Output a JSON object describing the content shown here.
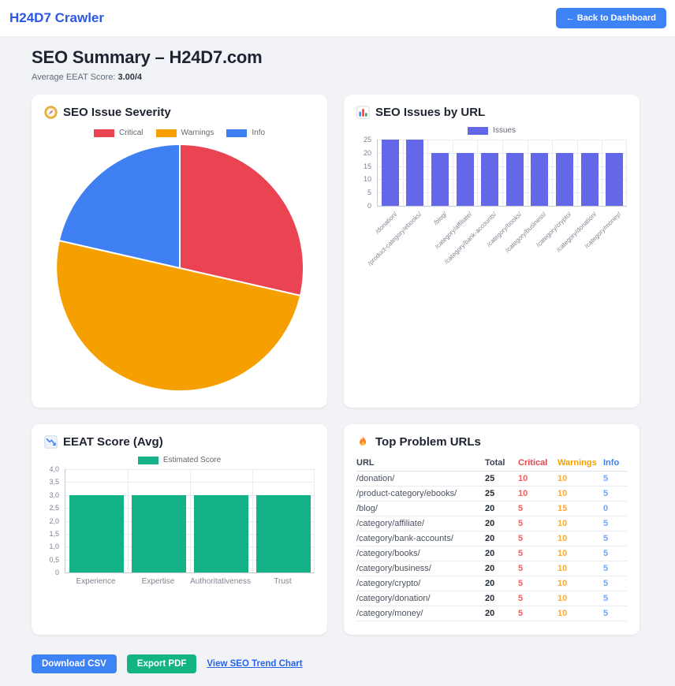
{
  "navbar": {
    "brand": "H24D7 Crawler",
    "back_button": "← Back to Dashboard"
  },
  "page": {
    "title": "SEO Summary – H24D7.com",
    "subtitle_label": "Average EEAT Score:",
    "subtitle_value": "3.00/4"
  },
  "colors": {
    "brand_blue": "#2b57e5",
    "primary_blue": "#3e83f6",
    "green": "#12b483",
    "critical_red": "#ea4352",
    "warning_orange": "#f5a000",
    "info_blue": "#3e7ff2",
    "issues_purple": "#6467e8",
    "eeat_green": "#12b186",
    "link_blue": "#2563eb"
  },
  "cards": {
    "severity": {
      "icon": "compass-icon",
      "title": "SEO Issue Severity"
    },
    "issues_by_url": {
      "icon": "bar-chart-icon",
      "title": "SEO Issues by URL"
    },
    "eeat": {
      "icon": "chart-decreasing-icon",
      "title": "EEAT Score (Avg)"
    },
    "top_urls": {
      "icon": "fire-icon",
      "title": "Top Problem URLs"
    }
  },
  "chart_data": [
    {
      "id": "severity_pie",
      "type": "pie",
      "title": "SEO Issue Severity",
      "labels": [
        "Critical",
        "Warnings",
        "Info"
      ],
      "values": [
        60,
        105,
        45
      ],
      "colors": [
        "#ea4352",
        "#f5a000",
        "#3e7ff2"
      ],
      "legend_position": "top"
    },
    {
      "id": "issues_bar",
      "type": "bar",
      "title": "SEO Issues by URL",
      "legend": "Issues",
      "color": "#6467e8",
      "categories": [
        "/donation/",
        "/product-category/ebooks/",
        "/blog/",
        "/category/affiliate/",
        "/category/bank-accounts/",
        "/category/books/",
        "/category/business/",
        "/category/crypto/",
        "/category/donation/",
        "/category/money/"
      ],
      "values": [
        25,
        25,
        20,
        20,
        20,
        20,
        20,
        20,
        20,
        20
      ],
      "ylim": [
        0,
        25
      ],
      "yticks": [
        "25",
        "20",
        "15",
        "10",
        "5",
        "0"
      ],
      "grid": true,
      "legend_position": "top",
      "xtick_rotation": 45
    },
    {
      "id": "eeat_bar",
      "type": "bar",
      "title": "EEAT Score (Avg)",
      "legend": "Estimated Score",
      "color": "#12b186",
      "categories": [
        "Experience",
        "Expertise",
        "Authoritativeness",
        "Trust"
      ],
      "values": [
        3,
        3,
        3,
        3
      ],
      "ylim": [
        0,
        4
      ],
      "yticks": [
        "4,0",
        "3,5",
        "3,0",
        "2,5",
        "2,0",
        "1,5",
        "1,0",
        "0,5",
        "0"
      ],
      "grid": true,
      "legend_position": "top",
      "xtick_rotation": 0
    }
  ],
  "table": {
    "headers": [
      "URL",
      "Total",
      "Critical",
      "Warnings",
      "Info"
    ],
    "rows": [
      [
        "/donation/",
        "25",
        "10",
        "10",
        "5"
      ],
      [
        "/product-category/ebooks/",
        "25",
        "10",
        "10",
        "5"
      ],
      [
        "/blog/",
        "20",
        "5",
        "15",
        "0"
      ],
      [
        "/category/affiliate/",
        "20",
        "5",
        "10",
        "5"
      ],
      [
        "/category/bank-accounts/",
        "20",
        "5",
        "10",
        "5"
      ],
      [
        "/category/books/",
        "20",
        "5",
        "10",
        "5"
      ],
      [
        "/category/business/",
        "20",
        "5",
        "10",
        "5"
      ],
      [
        "/category/crypto/",
        "20",
        "5",
        "10",
        "5"
      ],
      [
        "/category/donation/",
        "20",
        "5",
        "10",
        "5"
      ],
      [
        "/category/money/",
        "20",
        "5",
        "10",
        "5"
      ]
    ]
  },
  "footer": {
    "download_csv": "Download CSV",
    "export_pdf": "Export PDF",
    "trend_link": "View SEO Trend Chart"
  }
}
